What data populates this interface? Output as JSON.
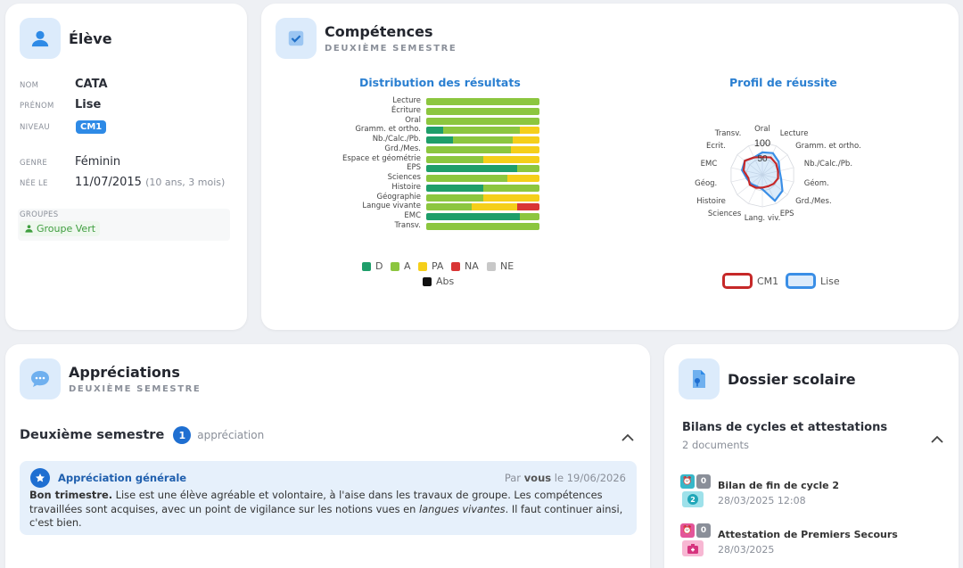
{
  "eleve": {
    "title": "Élève",
    "nom_label": "NOM",
    "nom": "CATA",
    "prenom_label": "PRÉNOM",
    "prenom": "Lise",
    "niveau_label": "NIVEAU",
    "niveau": "CM1",
    "genre_label": "GENRE",
    "genre": "Féminin",
    "nee_label": "NÉE LE",
    "nee": "11/07/2015",
    "age": "(10 ans, 3 mois)",
    "groupes_label": "GROUPES",
    "groupe": "Groupe Vert"
  },
  "competences": {
    "title": "Compétences",
    "subtitle": "DEUXIÈME SEMESTRE"
  },
  "chart_data": [
    {
      "type": "bar",
      "title": "Distribution des résultats",
      "categories": [
        "Lecture",
        "Écriture",
        "Oral",
        "Gramm. et ortho.",
        "Nb./Calc./Pb.",
        "Grd./Mes.",
        "Espace et géométrie",
        "EPS",
        "Sciences",
        "Histoire",
        "Géographie",
        "Langue vivante",
        "EMC",
        "Transv."
      ],
      "series": [
        {
          "name": "D",
          "color": "#1e9e6a",
          "values": [
            0,
            0,
            0,
            15,
            24,
            0,
            0,
            80,
            0,
            50,
            0,
            0,
            83,
            0
          ]
        },
        {
          "name": "A",
          "color": "#8cc63f",
          "values": [
            100,
            100,
            100,
            68,
            52,
            75,
            50,
            20,
            72,
            50,
            50,
            40,
            17,
            100
          ]
        },
        {
          "name": "PA",
          "color": "#f5cf1a",
          "values": [
            0,
            0,
            0,
            17,
            24,
            25,
            50,
            0,
            28,
            0,
            50,
            40,
            0,
            0
          ]
        },
        {
          "name": "NA",
          "color": "#d93535",
          "values": [
            0,
            0,
            0,
            0,
            0,
            0,
            0,
            0,
            0,
            0,
            0,
            20,
            0,
            0
          ]
        },
        {
          "name": "NE",
          "color": "#c8c8c8",
          "values": [
            0,
            0,
            0,
            0,
            0,
            0,
            0,
            0,
            0,
            0,
            0,
            0,
            0,
            0
          ]
        },
        {
          "name": "Abs",
          "color": "#111111",
          "values": [
            0,
            0,
            0,
            0,
            0,
            0,
            0,
            0,
            0,
            0,
            0,
            0,
            0,
            0
          ]
        }
      ]
    },
    {
      "type": "radar",
      "title": "Profil de réussite",
      "axes": [
        "Oral",
        "Lecture",
        "Gramm. et ortho.",
        "Nb./Calc./Pb.",
        "Géom.",
        "Grd./Mes.",
        "EPS",
        "Lang. viv.",
        "Sciences",
        "Histoire",
        "Géog.",
        "EMC",
        "Ecrit.",
        "Transv."
      ],
      "ticks": [
        "100",
        "50"
      ],
      "rmax": 100,
      "series": [
        {
          "name": "CM1",
          "color": "#c62828",
          "values": [
            55,
            60,
            55,
            50,
            50,
            45,
            40,
            40,
            45,
            50,
            45,
            60,
            70,
            60
          ]
        },
        {
          "name": "Lise",
          "color": "#3a8ee6",
          "values": [
            70,
            75,
            65,
            55,
            60,
            80,
            90,
            45,
            40,
            45,
            50,
            65,
            70,
            60
          ]
        }
      ]
    }
  ],
  "appreciations": {
    "title": "Appréciations",
    "subtitle": "DEUXIÈME SEMESTRE",
    "section": "Deuxième semestre",
    "count": "1",
    "count_label": "appréciation",
    "item_title": "Appréciation générale",
    "by_prefix": "Par",
    "by_who": "vous",
    "by_date": "le 19/06/2026",
    "lead": "Bon trimestre.",
    "text1": " Lise est une élève agréable et volontaire, à l'aise dans les travaux de groupe. Les compétences travaillées sont acquises, avec un point de vigilance sur les notions vues en ",
    "text_em": "langues vivantes",
    "text2": ". Il faut continuer ainsi, c'est bien."
  },
  "dossier": {
    "title": "Dossier scolaire",
    "section": "Bilans de cycles et attestations",
    "count": "2 documents",
    "docs": [
      {
        "title": "Bilan de fin de cycle 2",
        "date": "28/03/2025 12:08",
        "n1": "0",
        "n2": "2"
      },
      {
        "title": "Attestation de Premiers Secours",
        "date": "28/03/2025",
        "n1": "0"
      }
    ]
  }
}
